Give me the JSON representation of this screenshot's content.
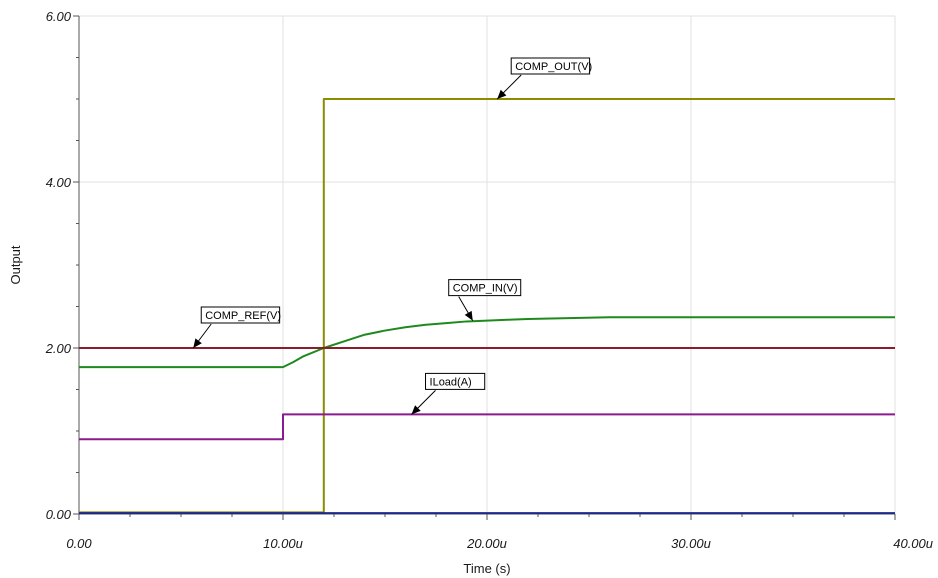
{
  "chart_data": {
    "type": "line",
    "title": "",
    "xlabel": "Time (s)",
    "ylabel": "Output",
    "xlim": [
      0,
      40
    ],
    "ylim": [
      0,
      6
    ],
    "grid": true,
    "x_ticks": [
      {
        "value": 0,
        "label": "0.00"
      },
      {
        "value": 10,
        "label": "10.00u"
      },
      {
        "value": 20,
        "label": "20.00u"
      },
      {
        "value": 30,
        "label": "30.00u"
      },
      {
        "value": 40,
        "label": "40.00u"
      }
    ],
    "y_ticks": [
      {
        "value": 0,
        "label": "0.00"
      },
      {
        "value": 2,
        "label": "2.00"
      },
      {
        "value": 4,
        "label": "4.00"
      },
      {
        "value": 6,
        "label": "6.00"
      }
    ],
    "series": [
      {
        "name": "COMP_OUT(V)",
        "color": "#8c8c00",
        "points": [
          [
            0,
            0.02
          ],
          [
            12,
            0.02
          ],
          [
            12,
            5.0
          ],
          [
            40,
            5.0
          ]
        ],
        "callout": {
          "x": 20.5,
          "y": 5.0
        }
      },
      {
        "name": "COMP_IN(V)",
        "color": "#1e8a1e",
        "points": [
          [
            0,
            1.77
          ],
          [
            10,
            1.77
          ],
          [
            10.5,
            1.83
          ],
          [
            11,
            1.9
          ],
          [
            12,
            2.0
          ],
          [
            13,
            2.08
          ],
          [
            14,
            2.16
          ],
          [
            15,
            2.21
          ],
          [
            16,
            2.25
          ],
          [
            17,
            2.28
          ],
          [
            18,
            2.3
          ],
          [
            19,
            2.32
          ],
          [
            20,
            2.33
          ],
          [
            21,
            2.34
          ],
          [
            22,
            2.35
          ],
          [
            24,
            2.36
          ],
          [
            26,
            2.37
          ],
          [
            40,
            2.37
          ]
        ],
        "callout": {
          "x": 19.3,
          "y": 2.33
        }
      },
      {
        "name": "COMP_REF(V)",
        "color": "#8b1c2a",
        "points": [
          [
            0,
            2.0
          ],
          [
            40,
            2.0
          ]
        ],
        "callout": {
          "x": 5.6,
          "y": 2.0
        }
      },
      {
        "name": "ILoad(A)",
        "color": "#8a1a8e",
        "points": [
          [
            0,
            0.9
          ],
          [
            10,
            0.9
          ],
          [
            10,
            1.2
          ],
          [
            40,
            1.2
          ]
        ],
        "callout": {
          "x": 16.3,
          "y": 1.2
        }
      },
      {
        "name": "",
        "color": "#1a2a8a",
        "points": [
          [
            0,
            0.01
          ],
          [
            40,
            0.01
          ]
        ]
      }
    ]
  }
}
